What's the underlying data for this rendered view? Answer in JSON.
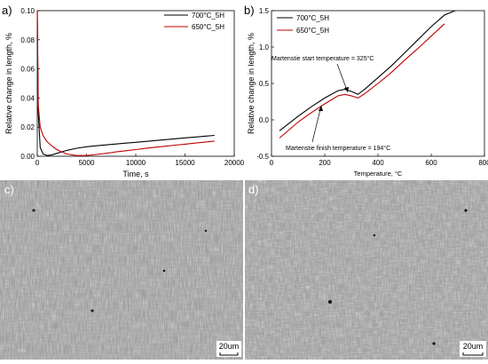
{
  "chart_data": [
    {
      "panel": "a)",
      "type": "line",
      "xlabel": "Time, s",
      "ylabel": "Relative change in length, %",
      "xlim": [
        0,
        20000
      ],
      "ylim": [
        0.0,
        0.1
      ],
      "xticks": [
        0,
        5000,
        10000,
        15000,
        20000
      ],
      "yticks": [
        0.0,
        0.02,
        0.04,
        0.06,
        0.08,
        0.1
      ],
      "xtick_labels": [
        "0",
        "5000",
        "10000",
        "15000",
        "20000"
      ],
      "ytick_labels": [
        "0.00",
        "0.02",
        "0.04",
        "0.06",
        "0.08",
        "0.10"
      ],
      "legend_position": "top-right",
      "series": [
        {
          "name": "700°C_5H",
          "color": "#000000",
          "x": [
            0,
            100,
            300,
            600,
            1000,
            1500,
            2000,
            3000,
            4000,
            5000,
            6000,
            7000,
            8000,
            9000,
            10000,
            11000,
            12000,
            13000,
            14000,
            15000,
            16000,
            17000,
            18000
          ],
          "y": [
            0.1,
            0.03,
            0.006,
            0.0015,
            0.0005,
            0.001,
            0.002,
            0.004,
            0.0055,
            0.0065,
            0.0072,
            0.0078,
            0.0084,
            0.009,
            0.0096,
            0.0102,
            0.0108,
            0.0114,
            0.012,
            0.0126,
            0.0132,
            0.0138,
            0.0143
          ]
        },
        {
          "name": "650°C_5H",
          "color": "#c00000",
          "x": [
            0,
            100,
            300,
            600,
            1000,
            1500,
            2000,
            3000,
            4000,
            5000,
            6000,
            7000,
            8000,
            9000,
            10000,
            11000,
            12000,
            13000,
            14000,
            15000,
            16000,
            17000,
            18000
          ],
          "y": [
            0.1,
            0.035,
            0.02,
            0.014,
            0.01,
            0.007,
            0.0045,
            0.0015,
            0.0005,
            0.0005,
            0.0012,
            0.002,
            0.003,
            0.0038,
            0.0046,
            0.0054,
            0.0062,
            0.0069,
            0.0076,
            0.0083,
            0.009,
            0.0097,
            0.0104
          ]
        }
      ]
    },
    {
      "panel": "b)",
      "type": "line",
      "xlabel": "Temperature, °C",
      "ylabel": "Relative change in length, %",
      "xlim": [
        0,
        800
      ],
      "ylim": [
        -0.5,
        1.5
      ],
      "xticks": [
        0,
        200,
        400,
        600,
        800
      ],
      "yticks": [
        -0.5,
        0.0,
        0.5,
        1.0,
        1.5
      ],
      "xtick_labels": [
        "0",
        "200",
        "400",
        "600",
        "800"
      ],
      "ytick_labels": [
        "-0.5",
        "0.0",
        "0.5",
        "1.0",
        "1.5"
      ],
      "legend_position": "top-left",
      "annotations": [
        {
          "text": "Martenstie start temperature = 325°C",
          "x": 325
        },
        {
          "text": "Martenstie finish temperature = 194°C",
          "x": 194
        }
      ],
      "series": [
        {
          "name": "700°C_5H",
          "color": "#000000",
          "x": [
            30,
            100,
            150,
            200,
            250,
            275,
            300,
            325,
            350,
            400,
            450,
            500,
            550,
            600,
            650,
            690
          ],
          "y": [
            -0.15,
            0.05,
            0.18,
            0.3,
            0.4,
            0.42,
            0.39,
            0.35,
            0.42,
            0.58,
            0.74,
            0.92,
            1.1,
            1.28,
            1.44,
            1.5
          ]
        },
        {
          "name": "650°C_5H",
          "color": "#c00000",
          "x": [
            30,
            100,
            150,
            200,
            250,
            275,
            300,
            325,
            350,
            400,
            450,
            500,
            550,
            600,
            650
          ],
          "y": [
            -0.25,
            -0.03,
            0.1,
            0.22,
            0.33,
            0.35,
            0.33,
            0.3,
            0.36,
            0.5,
            0.65,
            0.82,
            0.98,
            1.15,
            1.32
          ]
        }
      ]
    }
  ],
  "micrographs": [
    {
      "panel": "c)",
      "scale_label": "20um"
    },
    {
      "panel": "d)",
      "scale_label": "20um"
    }
  ]
}
